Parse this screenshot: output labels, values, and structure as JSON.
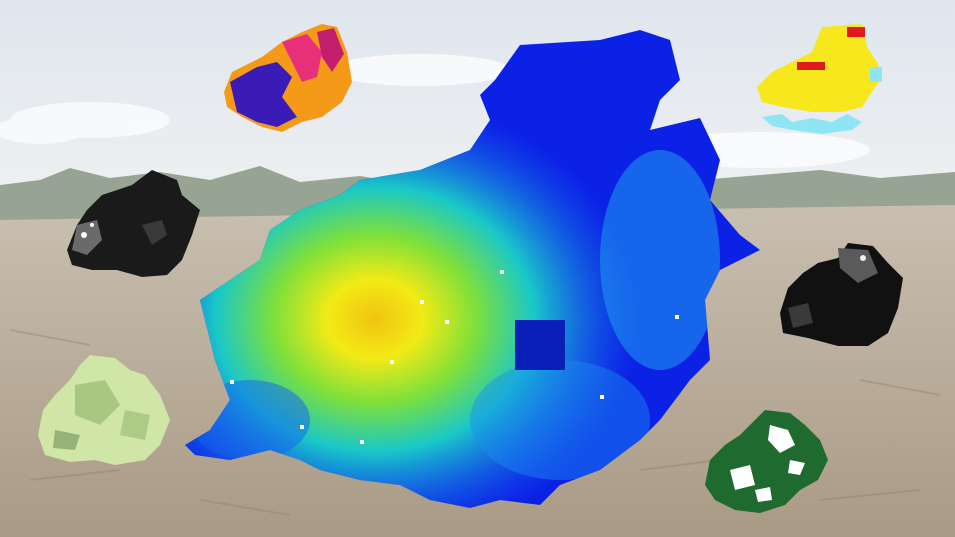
{
  "scene": {
    "background": "photo-of-cleared-forest-land-under-overcast-sky",
    "colors": {
      "sky": "#e7ebef",
      "tree_line": "#8c9a88",
      "ground": "#b8aa97",
      "map_low": "#0a1ee6",
      "map_mid": "#14d2c8",
      "map_high": "#f5e10f",
      "map_peak": "#e83a0f"
    }
  },
  "main_map": {
    "name": "regional-raster-map",
    "colormap": "jet"
  },
  "thumbnails": [
    {
      "name": "heat-map-thumbnail",
      "colormap": "plasma",
      "colors": [
        "#3b1bb5",
        "#e8307a",
        "#f59a18"
      ]
    },
    {
      "name": "yellow-cells-thumbnail",
      "colormap": "categorical",
      "colors": [
        "#f6e81c",
        "#e01b1b",
        "#8ee6f5"
      ]
    },
    {
      "name": "grayscale-thumbnail-left",
      "colormap": "gray",
      "colors": [
        "#1a1a1a",
        "#6a6a6a",
        "#ffffff"
      ]
    },
    {
      "name": "grayscale-thumbnail-right",
      "colormap": "gray",
      "colors": [
        "#111111",
        "#5a5a5a",
        "#f0f0f0"
      ]
    },
    {
      "name": "light-green-thumbnail",
      "colormap": "greens",
      "colors": [
        "#cfe6a6",
        "#9fbf79",
        "#5e7e4a"
      ]
    },
    {
      "name": "dark-green-thumbnail",
      "colormap": "greens",
      "colors": [
        "#1f6a2e",
        "#ffffff"
      ]
    }
  ]
}
